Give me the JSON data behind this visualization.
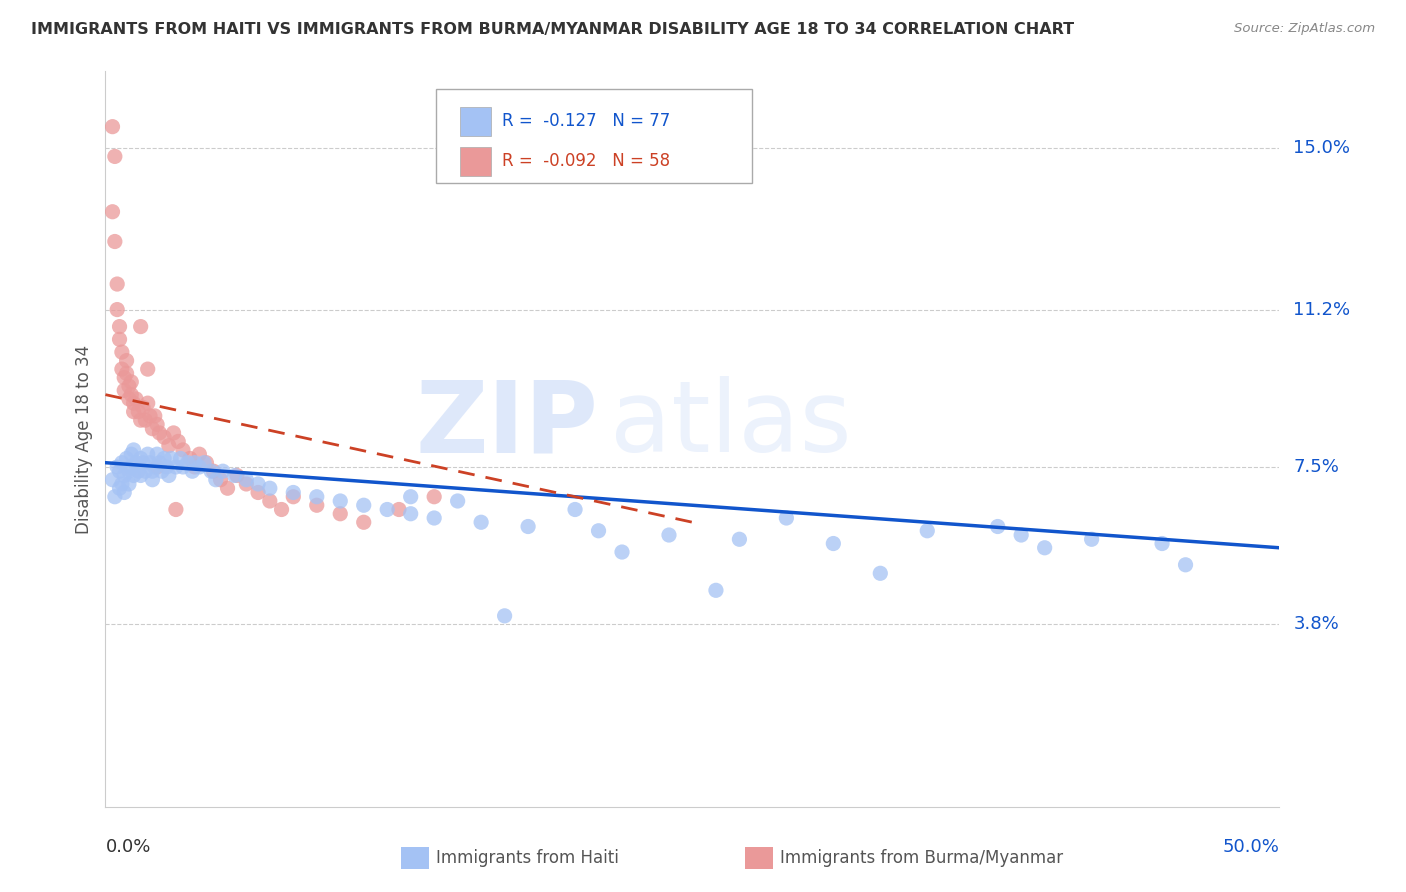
{
  "title": "IMMIGRANTS FROM HAITI VS IMMIGRANTS FROM BURMA/MYANMAR DISABILITY AGE 18 TO 34 CORRELATION CHART",
  "source": "Source: ZipAtlas.com",
  "ylabel": "Disability Age 18 to 34",
  "ytick_labels": [
    "3.8%",
    "7.5%",
    "11.2%",
    "15.0%"
  ],
  "ytick_values": [
    0.038,
    0.075,
    0.112,
    0.15
  ],
  "xlim": [
    0.0,
    0.5
  ],
  "ylim": [
    -0.005,
    0.168
  ],
  "color_haiti": "#a4c2f4",
  "color_burma": "#ea9999",
  "trendline_haiti_color": "#1155cc",
  "trendline_burma_color": "#cc4125",
  "watermark_zip": "ZIP",
  "watermark_atlas": "atlas",
  "haiti_x": [
    0.003,
    0.004,
    0.005,
    0.006,
    0.006,
    0.007,
    0.007,
    0.008,
    0.008,
    0.009,
    0.01,
    0.01,
    0.011,
    0.011,
    0.012,
    0.012,
    0.013,
    0.014,
    0.015,
    0.015,
    0.016,
    0.017,
    0.018,
    0.019,
    0.02,
    0.02,
    0.021,
    0.022,
    0.023,
    0.024,
    0.025,
    0.026,
    0.027,
    0.028,
    0.03,
    0.032,
    0.033,
    0.035,
    0.037,
    0.038,
    0.04,
    0.042,
    0.045,
    0.047,
    0.05,
    0.055,
    0.06,
    0.065,
    0.07,
    0.08,
    0.09,
    0.1,
    0.11,
    0.12,
    0.13,
    0.14,
    0.16,
    0.18,
    0.21,
    0.24,
    0.27,
    0.31,
    0.35,
    0.39,
    0.42,
    0.45,
    0.38,
    0.29,
    0.2,
    0.15,
    0.17,
    0.13,
    0.22,
    0.26,
    0.33,
    0.4,
    0.46
  ],
  "haiti_y": [
    0.072,
    0.068,
    0.075,
    0.07,
    0.074,
    0.071,
    0.076,
    0.073,
    0.069,
    0.077,
    0.074,
    0.071,
    0.078,
    0.075,
    0.073,
    0.079,
    0.076,
    0.074,
    0.077,
    0.073,
    0.076,
    0.074,
    0.078,
    0.076,
    0.074,
    0.072,
    0.075,
    0.078,
    0.076,
    0.074,
    0.077,
    0.075,
    0.073,
    0.077,
    0.075,
    0.077,
    0.075,
    0.076,
    0.074,
    0.076,
    0.075,
    0.076,
    0.074,
    0.072,
    0.074,
    0.073,
    0.072,
    0.071,
    0.07,
    0.069,
    0.068,
    0.067,
    0.066,
    0.065,
    0.064,
    0.063,
    0.062,
    0.061,
    0.06,
    0.059,
    0.058,
    0.057,
    0.06,
    0.059,
    0.058,
    0.057,
    0.061,
    0.063,
    0.065,
    0.067,
    0.04,
    0.068,
    0.055,
    0.046,
    0.05,
    0.056,
    0.052
  ],
  "burma_x": [
    0.003,
    0.004,
    0.005,
    0.005,
    0.006,
    0.006,
    0.007,
    0.007,
    0.008,
    0.008,
    0.009,
    0.009,
    0.01,
    0.01,
    0.011,
    0.011,
    0.012,
    0.012,
    0.013,
    0.014,
    0.015,
    0.016,
    0.017,
    0.018,
    0.019,
    0.02,
    0.021,
    0.022,
    0.023,
    0.025,
    0.027,
    0.029,
    0.031,
    0.033,
    0.036,
    0.038,
    0.04,
    0.043,
    0.046,
    0.049,
    0.052,
    0.056,
    0.06,
    0.065,
    0.07,
    0.075,
    0.08,
    0.09,
    0.1,
    0.11,
    0.125,
    0.14,
    0.003,
    0.004,
    0.015,
    0.018,
    0.022,
    0.03
  ],
  "burma_y": [
    0.135,
    0.128,
    0.118,
    0.112,
    0.108,
    0.105,
    0.102,
    0.098,
    0.096,
    0.093,
    0.1,
    0.097,
    0.094,
    0.091,
    0.095,
    0.092,
    0.09,
    0.088,
    0.091,
    0.088,
    0.086,
    0.089,
    0.086,
    0.09,
    0.087,
    0.084,
    0.087,
    0.085,
    0.083,
    0.082,
    0.08,
    0.083,
    0.081,
    0.079,
    0.077,
    0.075,
    0.078,
    0.076,
    0.074,
    0.072,
    0.07,
    0.073,
    0.071,
    0.069,
    0.067,
    0.065,
    0.068,
    0.066,
    0.064,
    0.062,
    0.065,
    0.068,
    0.155,
    0.148,
    0.108,
    0.098,
    0.075,
    0.065
  ],
  "haiti_trend_x": [
    0.0,
    0.5
  ],
  "haiti_trend_y_start": 0.076,
  "haiti_trend_y_end": 0.056,
  "burma_trend_x": [
    0.0,
    0.25
  ],
  "burma_trend_y_start": 0.092,
  "burma_trend_y_end": 0.062
}
